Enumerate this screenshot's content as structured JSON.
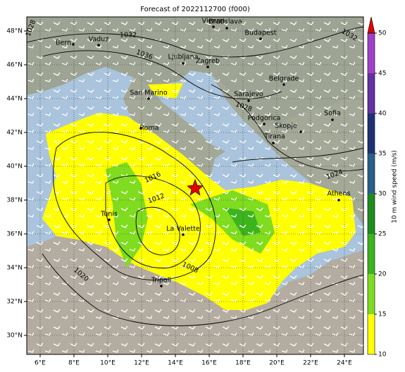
{
  "title": "Forecast of 2022112700 (f000)",
  "lon_ticks": [
    {
      "value": 6,
      "label": "6°E"
    },
    {
      "value": 8,
      "label": "8°E"
    },
    {
      "value": 10,
      "label": "10°E"
    },
    {
      "value": 12,
      "label": "12°E"
    },
    {
      "value": 14,
      "label": "14°E"
    },
    {
      "value": 16,
      "label": "16°E"
    },
    {
      "value": 18,
      "label": "18°E"
    },
    {
      "value": 20,
      "label": "20°E"
    },
    {
      "value": 22,
      "label": "22°E"
    },
    {
      "value": 24,
      "label": "24°E"
    }
  ],
  "lat_ticks": [
    {
      "value": 48,
      "label": "48°N"
    },
    {
      "value": 46,
      "label": "46°N"
    },
    {
      "value": 44,
      "label": "44°N"
    },
    {
      "value": 42,
      "label": "42°N"
    },
    {
      "value": 40,
      "label": "40°N"
    },
    {
      "value": 38,
      "label": "38°N"
    },
    {
      "value": 36,
      "label": "36°N"
    },
    {
      "value": 34,
      "label": "34°N"
    },
    {
      "value": 32,
      "label": "32°N"
    },
    {
      "value": 30,
      "label": "30°N"
    }
  ],
  "cities": [
    "Bern",
    "Vaduz",
    "Vienna",
    "Bratislava",
    "Budapest",
    "Ljubljana",
    "Zagreb",
    "San Marino",
    "Belgrade",
    "Sarajevo",
    "Podgorica",
    "Sofia",
    "Skopje",
    "Roma",
    "Tirana",
    "Athens",
    "Tunis",
    "La Valette",
    "Tripoli"
  ],
  "isobar_labels": [
    "1028",
    "1032",
    "1036",
    "1028",
    "1032",
    "1024",
    "1016",
    "1012",
    "1008",
    "1020"
  ],
  "colorbar": {
    "label": "10 m wind speed (m/s)",
    "ticks": [
      10,
      15,
      20,
      25,
      30,
      35,
      40,
      45,
      50
    ],
    "colors": [
      "#ffff00",
      "#7fdc1e",
      "#3cb41e",
      "#1e8c1e",
      "#2a5f8c",
      "#1e3273",
      "#6432a0",
      "#a040c8"
    ],
    "over_color": "#e00000"
  }
}
